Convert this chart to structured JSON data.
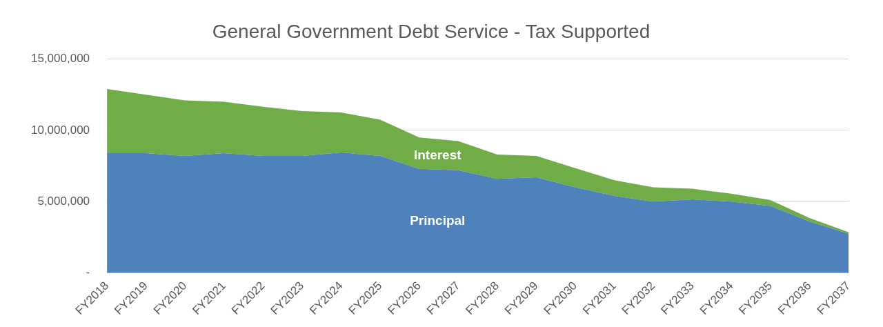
{
  "chart_data": {
    "type": "area",
    "stacked": true,
    "title": "General Government Debt Service - Tax Supported",
    "categories": [
      "FY2018",
      "FY2019",
      "FY2020",
      "FY2021",
      "FY2022",
      "FY2023",
      "FY2024",
      "FY2025",
      "FY2026",
      "FY2027",
      "FY2028",
      "FY2029",
      "FY2030",
      "FY2031",
      "FY2032",
      "FY2033",
      "FY2034",
      "FY2035",
      "FY2036",
      "FY2037"
    ],
    "series": [
      {
        "name": "Principal",
        "color": "#4f81bd",
        "values": [
          8400000,
          8400000,
          8200000,
          8400000,
          8200000,
          8200000,
          8450000,
          8200000,
          7300000,
          7200000,
          6600000,
          6700000,
          6000000,
          5400000,
          5000000,
          5150000,
          5000000,
          4700000,
          3600000,
          2750000
        ]
      },
      {
        "name": "Interest",
        "color": "#70ad47",
        "values": [
          4500000,
          4100000,
          3900000,
          3600000,
          3450000,
          3150000,
          2800000,
          2550000,
          2200000,
          2050000,
          1700000,
          1500000,
          1350000,
          1100000,
          1000000,
          750000,
          550000,
          400000,
          250000,
          100000
        ]
      }
    ],
    "ylim": [
      0,
      15000000
    ],
    "yticks": [
      {
        "value": 0,
        "label": "-"
      },
      {
        "value": 5000000,
        "label": "5,000,000"
      },
      {
        "value": 10000000,
        "label": "10,000,000"
      },
      {
        "value": 15000000,
        "label": "15,000,000"
      }
    ],
    "grid": "y",
    "legend": false
  }
}
